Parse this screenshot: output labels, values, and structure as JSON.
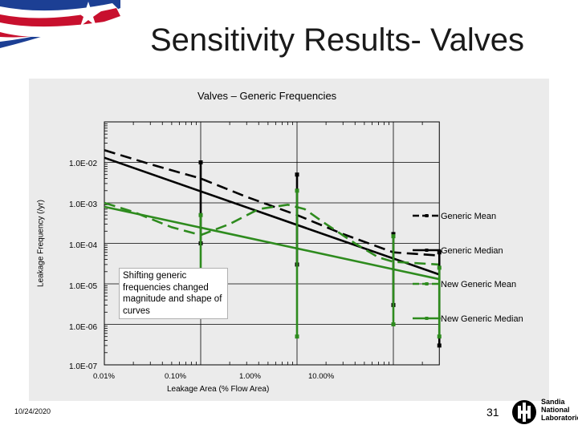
{
  "slide": {
    "title": "Sensitivity Results- Valves",
    "date": "10/24/2020",
    "page_number": "31",
    "logo_text": [
      "Sandia",
      "National",
      "Laboratories"
    ]
  },
  "chart_data": {
    "type": "line",
    "title": "Valves – Generic Frequencies",
    "xlabel": "Leakage Area (% Flow Area)",
    "ylabel": "Leakage Frequency (/yr)",
    "x_scale": "log",
    "y_scale": "log",
    "xlim": [
      0.0001,
      0.1
    ],
    "ylim": [
      1e-07,
      0.1
    ],
    "x_ticks": [
      "0.01%",
      "0.10%",
      "1.00%",
      "10.00%"
    ],
    "y_ticks": [
      "1.0E-02",
      "1.0E-03",
      "1.0E-04",
      "1.0E-05",
      "1.0E-06",
      "1.0E-07"
    ],
    "grid": true,
    "legend_position": "right",
    "annotation": "Shifting generic frequencies changed magnitude and shape of curves",
    "series": [
      {
        "name": "Generic Mean",
        "color": "#000000",
        "style": "dashed",
        "x": [
          0.0001,
          0.0003,
          0.001,
          0.003,
          0.01,
          0.03,
          0.1,
          0.3
        ],
        "y": [
          0.02,
          0.009,
          0.004,
          0.0014,
          0.0005,
          0.00017,
          6e-05,
          5e-05
        ]
      },
      {
        "name": "Generic Median",
        "color": "#000000",
        "style": "solid",
        "x": [
          0.0001,
          0.3
        ],
        "y": [
          0.013,
          1.7e-05
        ]
      },
      {
        "name": "New Generic Mean",
        "color": "#2e8b1e",
        "style": "dashed",
        "x": [
          0.0001,
          0.0002,
          0.0005,
          0.001,
          0.002,
          0.004,
          0.008,
          0.012,
          0.02,
          0.04,
          0.07,
          0.1,
          0.3
        ],
        "y": [
          0.001,
          0.0006,
          0.00025,
          0.00016,
          0.0003,
          0.0007,
          0.0009,
          0.0007,
          0.0003,
          0.0001,
          4.5e-05,
          3.5e-05,
          3e-05
        ]
      },
      {
        "name": "New Generic Median",
        "color": "#2e8b1e",
        "style": "solid",
        "x": [
          0.0001,
          0.3
        ],
        "y": [
          0.0008,
          1.3e-05
        ]
      }
    ],
    "error_bars": [
      {
        "color": "#000000",
        "x": 0.001,
        "low": 0.0001,
        "high": 0.01
      },
      {
        "color": "#000000",
        "x": 0.01,
        "low": 3e-05,
        "high": 0.005
      },
      {
        "color": "#000000",
        "x": 0.1,
        "low": 3e-06,
        "high": 0.00017
      },
      {
        "color": "#000000",
        "x": 0.3,
        "low": 3e-07,
        "high": 6e-05
      },
      {
        "color": "#2e8b1e",
        "x": 0.001,
        "low": 7e-06,
        "high": 0.0005
      },
      {
        "color": "#2e8b1e",
        "x": 0.01,
        "low": 5e-07,
        "high": 0.002
      },
      {
        "color": "#2e8b1e",
        "x": 0.1,
        "low": 1e-06,
        "high": 0.00015
      },
      {
        "color": "#2e8b1e",
        "x": 0.3,
        "low": 5e-07,
        "high": 2.5e-05
      }
    ]
  }
}
